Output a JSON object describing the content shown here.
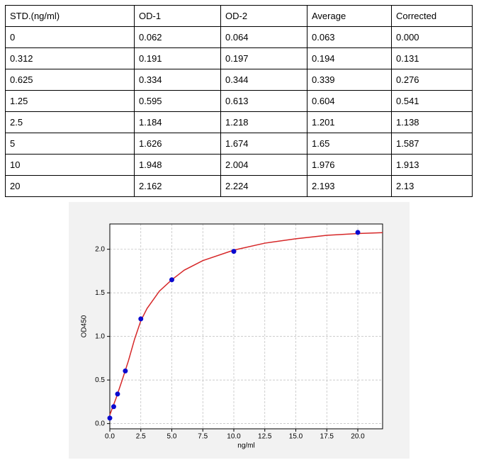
{
  "table": {
    "header": [
      "STD.(ng/ml)",
      "OD-1",
      "OD-2",
      "Average",
      "Corrected"
    ],
    "rows": [
      [
        "0",
        "0.062",
        "0.064",
        "0.063",
        "0.000"
      ],
      [
        "0.312",
        "0.191",
        "0.197",
        "0.194",
        "0.131"
      ],
      [
        "0.625",
        "0.334",
        "0.344",
        "0.339",
        "0.276"
      ],
      [
        "1.25",
        "0.595",
        "0.613",
        "0.604",
        "0.541"
      ],
      [
        "2.5",
        "1.184",
        "1.218",
        "1.201",
        "1.138"
      ],
      [
        "5",
        "1.626",
        "1.674",
        "1.65",
        "1.587"
      ],
      [
        "10",
        "1.948",
        "2.004",
        "1.976",
        "1.913"
      ],
      [
        "20",
        "2.162",
        "2.224",
        "2.193",
        "2.13"
      ]
    ]
  },
  "chart_data": {
    "type": "scatter",
    "xlabel": "ng/ml",
    "ylabel": "OD450",
    "series": [
      {
        "type": "scatter",
        "color": "#0a0ad0",
        "x": [
          0,
          0.312,
          0.625,
          1.25,
          2.5,
          5,
          10,
          20
        ],
        "values": [
          0.063,
          0.194,
          0.339,
          0.604,
          1.201,
          1.65,
          1.976,
          2.193
        ]
      },
      {
        "type": "line",
        "color": "#d62728",
        "x": [
          0,
          0.5,
          1,
          1.5,
          2,
          2.5,
          3,
          4,
          5,
          6,
          7.5,
          10,
          12.5,
          15,
          17.5,
          20,
          22
        ],
        "values": [
          0.1,
          0.29,
          0.5,
          0.72,
          0.97,
          1.18,
          1.32,
          1.52,
          1.65,
          1.76,
          1.87,
          1.99,
          2.07,
          2.12,
          2.16,
          2.18,
          2.19
        ]
      }
    ],
    "xlim": [
      0,
      22
    ],
    "ylim": [
      -0.06,
      2.29
    ],
    "xticks": [
      {
        "value": 0,
        "label": "0.0"
      },
      {
        "value": 2.5,
        "label": "2.5"
      },
      {
        "value": 5,
        "label": "5.0"
      },
      {
        "value": 7.5,
        "label": "7.5"
      },
      {
        "value": 10,
        "label": "10.0"
      },
      {
        "value": 12.5,
        "label": "12.5"
      },
      {
        "value": 15,
        "label": "15.0"
      },
      {
        "value": 17.5,
        "label": "17.5"
      },
      {
        "value": 20,
        "label": "20.0"
      }
    ],
    "yticks": [
      {
        "value": 0,
        "label": "0.0"
      },
      {
        "value": 0.5,
        "label": "0.5"
      },
      {
        "value": 1,
        "label": "1.0"
      },
      {
        "value": 1.5,
        "label": "1.5"
      },
      {
        "value": 2,
        "label": "2.0"
      }
    ],
    "grid": true
  }
}
